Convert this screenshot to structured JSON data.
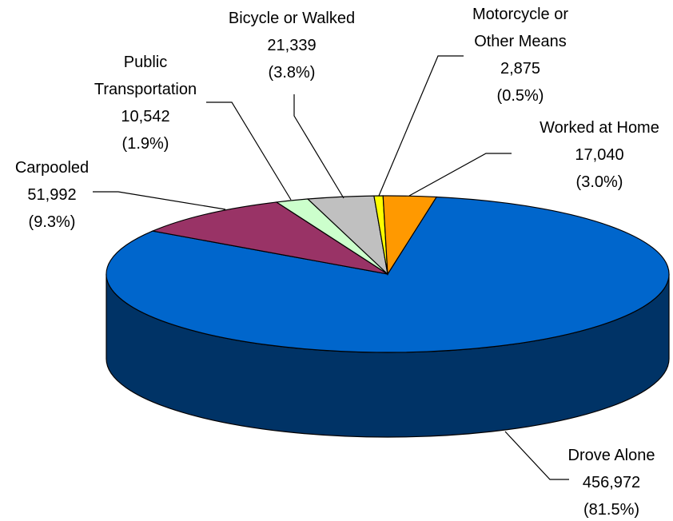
{
  "chart_data": {
    "type": "pie",
    "categories": [
      "Drove Alone",
      "Carpooled",
      "Public Transportation",
      "Bicycle or Walked",
      "Motorcycle or Other Means",
      "Worked at Home"
    ],
    "values": [
      456972,
      51992,
      10542,
      21339,
      2875,
      17040
    ],
    "value_labels": [
      "456,972",
      "51,992",
      "10,542",
      "21,339",
      "2,875",
      "17,040"
    ],
    "percent_labels": [
      "(81.5%)",
      "(9.3%)",
      "(1.9%)",
      "(3.8%)",
      "(0.5%)",
      "(3.0%)"
    ],
    "colors": [
      "#0066cc",
      "#993366",
      "#ccffcc",
      "#c0c0c0",
      "#ffff00",
      "#ff9900"
    ]
  }
}
